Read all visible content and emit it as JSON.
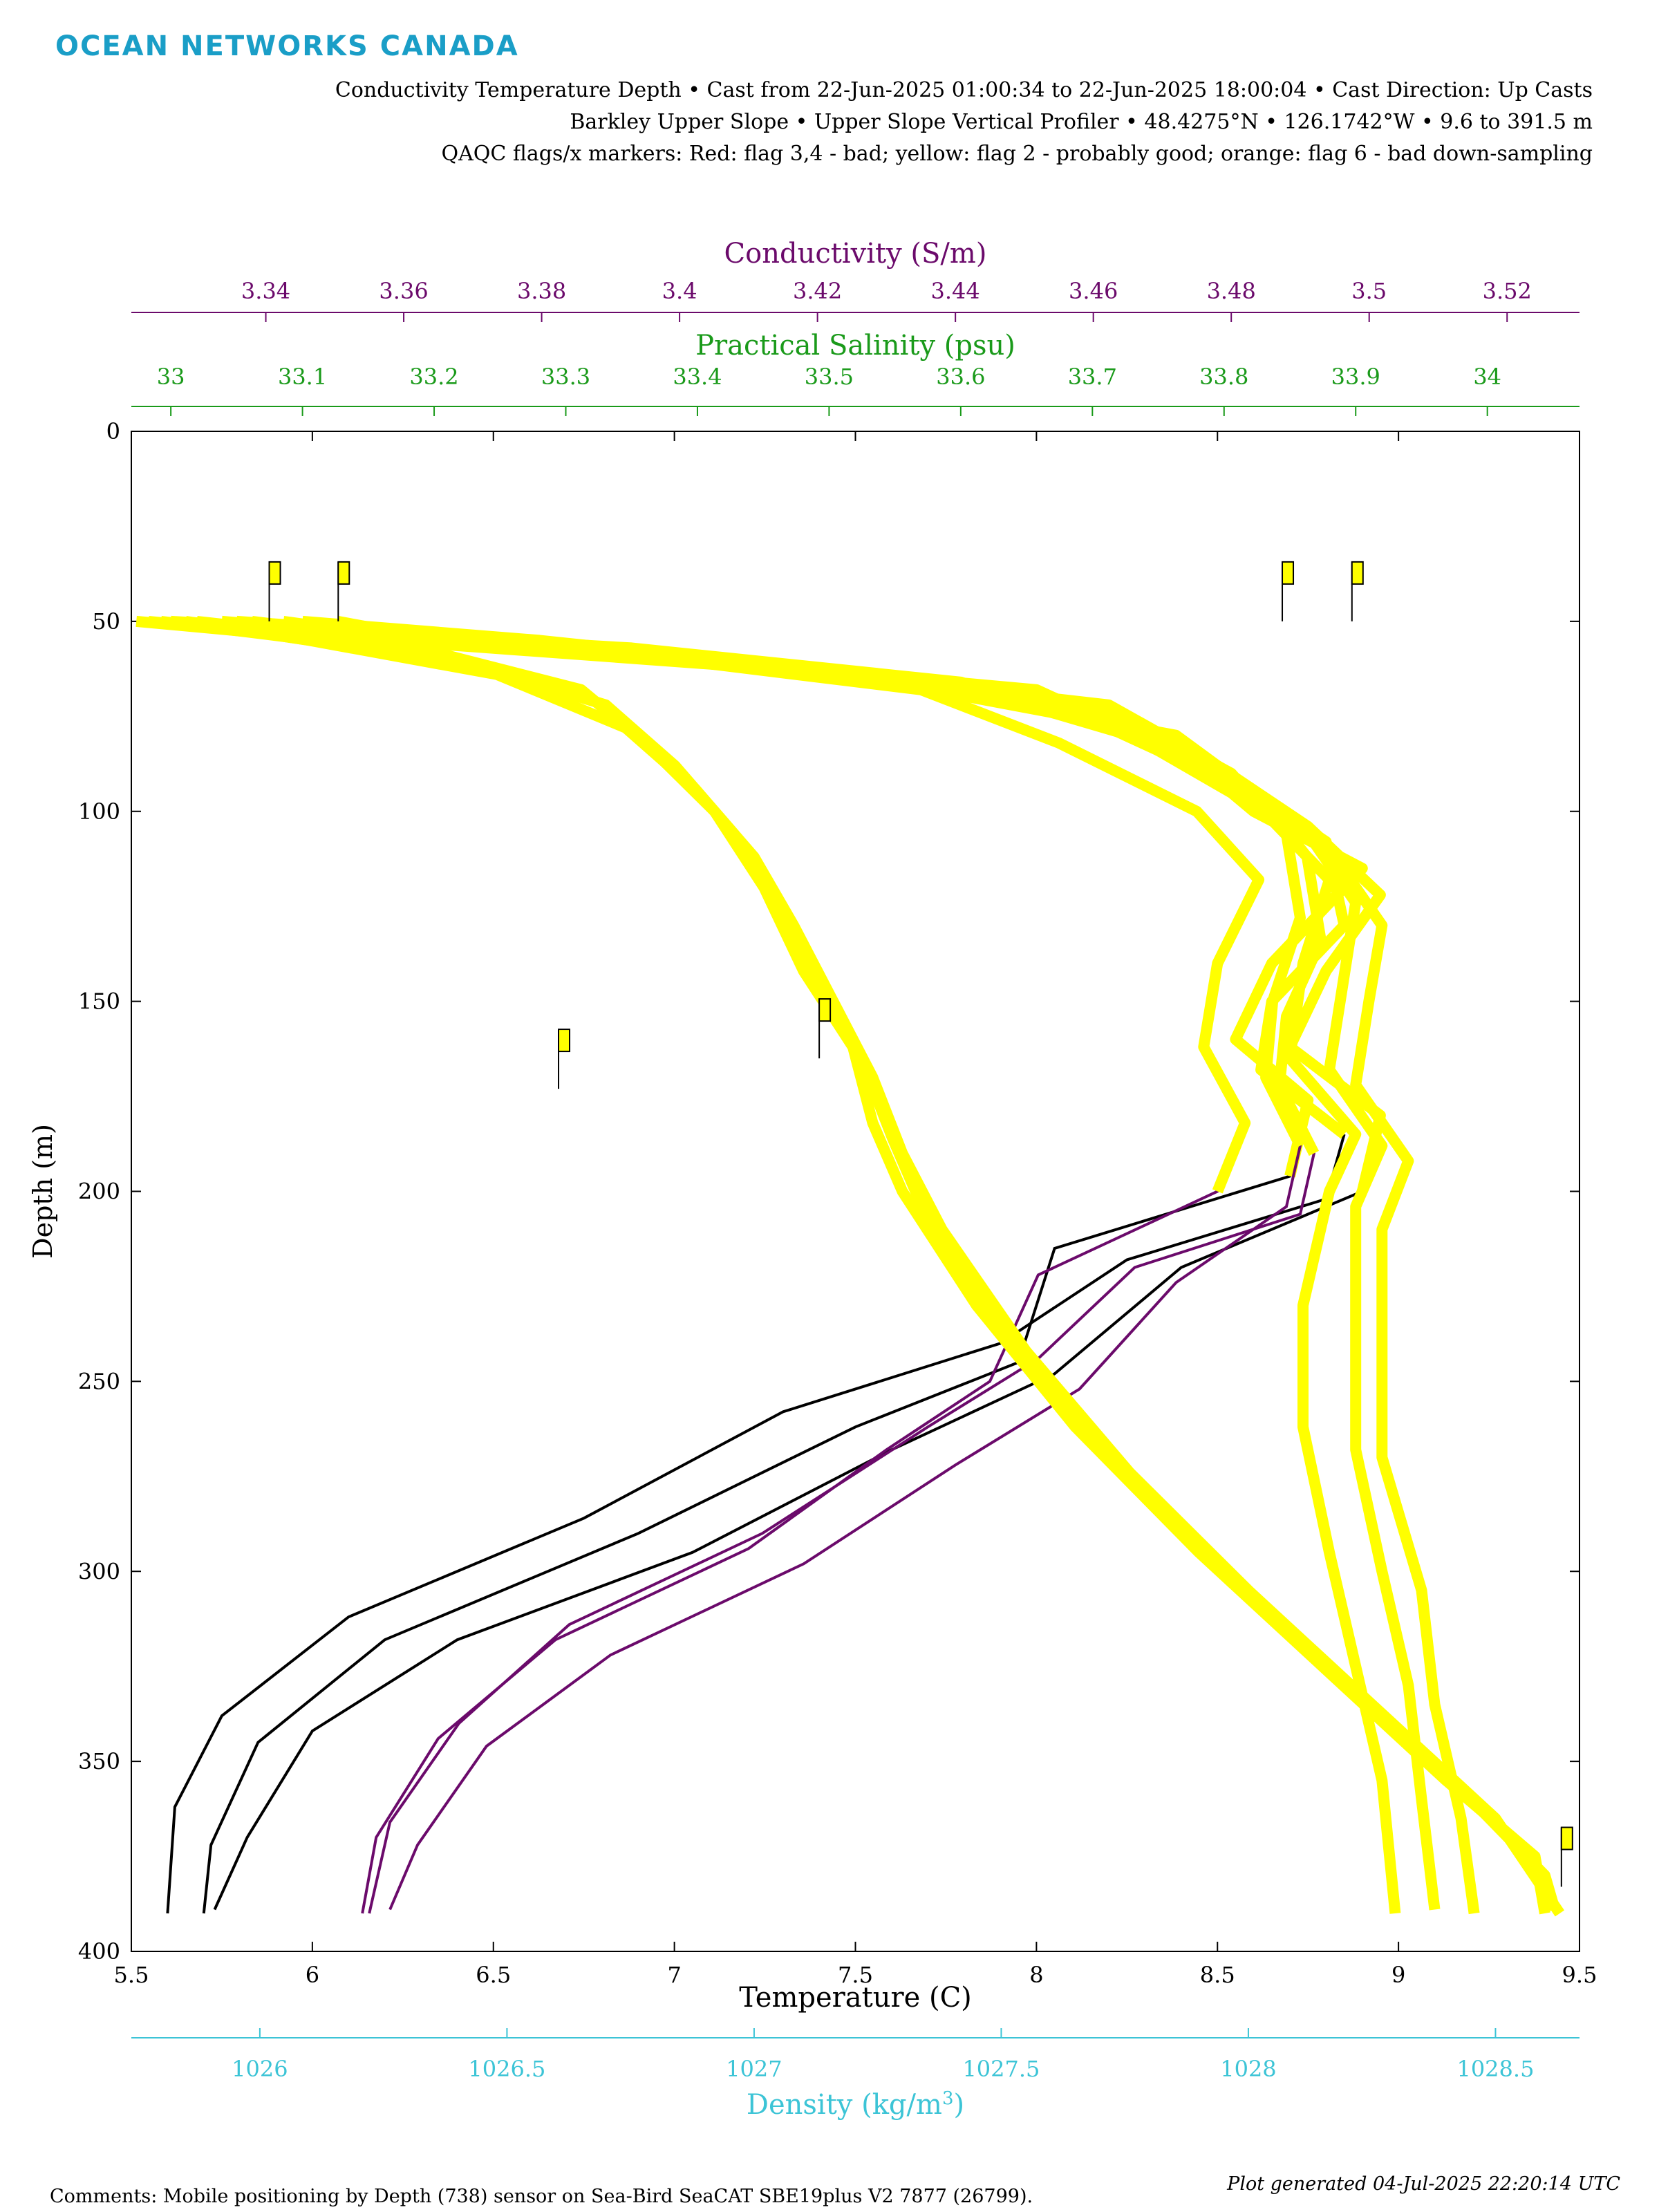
{
  "header": {
    "brand": "OCEAN NETWORKS CANADA",
    "line1": "Conductivity Temperature Depth • Cast from 22-Jun-2025 01:00:34 to 22-Jun-2025 18:00:04 • Cast Direction: Up Casts",
    "line2": "Barkley Upper Slope • Upper Slope Vertical Profiler • 48.4275°N • 126.1742°W • 9.6 to 391.5 m",
    "line3": "QAQC flags/x markers: Red: flag 3,4 - bad; yellow: flag 2 - probably good; orange: flag 6 - bad down-sampling"
  },
  "footer": {
    "comments": "Comments: Mobile positioning by Depth (738) sensor on Sea-Bird SeaCAT SBE19plus V2 7877 (26799).",
    "generated": "Plot generated 04-Jul-2025 22:20:14 UTC"
  },
  "colors": {
    "temperature": "#000000",
    "conductivity": "#6b0a6b",
    "salinity": "#1a9a1a",
    "density": "#3cc4d6",
    "flag2": "#ffff00"
  },
  "chart_data": {
    "type": "line",
    "y_axis": {
      "label": "Depth (m)",
      "range": [
        0,
        400
      ],
      "reversed": true,
      "ticks": [
        "0",
        "50",
        "100",
        "150",
        "200",
        "250",
        "300",
        "350",
        "400"
      ]
    },
    "x_axes": [
      {
        "key": "temperature",
        "label": "Temperature (C)",
        "position": "bottom",
        "range": [
          5.5,
          9.5
        ],
        "ticks": [
          "5.5",
          "6",
          "6.5",
          "7",
          "7.5",
          "8",
          "8.5",
          "9",
          "9.5"
        ]
      },
      {
        "key": "conductivity",
        "label": "Conductivity (S/m)",
        "position": "top",
        "range": [
          3.3205,
          3.5305
        ],
        "ticks": [
          "3.34",
          "3.36",
          "3.38",
          "3.4",
          "3.42",
          "3.44",
          "3.46",
          "3.48",
          "3.5",
          "3.52"
        ]
      },
      {
        "key": "salinity",
        "label": "Practical Salinity (psu)",
        "position": "top",
        "range": [
          32.97,
          34.07
        ],
        "ticks": [
          "33",
          "33.1",
          "33.2",
          "33.3",
          "33.4",
          "33.5",
          "33.6",
          "33.7",
          "33.8",
          "33.9",
          "34"
        ]
      },
      {
        "key": "density",
        "label": "Density (kg/m",
        "label_sup": "3",
        "label_end": ")",
        "position": "bottom",
        "range": [
          1025.74,
          1028.67
        ],
        "ticks": [
          "1026",
          "1026.5",
          "1027",
          "1027.5",
          "1028",
          "1028.5"
        ]
      }
    ],
    "series": [
      {
        "variable": "temperature",
        "casts": [
          [
            [
              5.75,
              50
            ],
            [
              6.0,
              52
            ],
            [
              6.9,
              58
            ],
            [
              7.9,
              70
            ],
            [
              8.4,
              84
            ],
            [
              8.6,
              100
            ],
            [
              8.9,
              115
            ],
            [
              8.65,
              140
            ],
            [
              8.55,
              160
            ],
            [
              8.75,
              176
            ],
            [
              8.7,
              196
            ],
            [
              8.05,
              215
            ],
            [
              7.95,
              245
            ],
            [
              7.5,
              262
            ],
            [
              6.9,
              290
            ],
            [
              6.2,
              318
            ],
            [
              5.85,
              345
            ],
            [
              5.72,
              372
            ],
            [
              5.7,
              390
            ]
          ],
          [
            [
              5.92,
              50
            ],
            [
              6.15,
              53
            ],
            [
              7.1,
              60
            ],
            [
              8.2,
              72
            ],
            [
              8.5,
              88
            ],
            [
              8.75,
              104
            ],
            [
              8.95,
              122
            ],
            [
              8.8,
              142
            ],
            [
              8.7,
              162
            ],
            [
              8.95,
              180
            ],
            [
              8.9,
              200
            ],
            [
              8.4,
              220
            ],
            [
              8.05,
              248
            ],
            [
              7.6,
              268
            ],
            [
              7.05,
              295
            ],
            [
              6.4,
              318
            ],
            [
              6.0,
              342
            ],
            [
              5.82,
              370
            ],
            [
              5.73,
              389
            ]
          ],
          [
            [
              6.07,
              50
            ],
            [
              6.3,
              54
            ],
            [
              7.3,
              62
            ],
            [
              8.0,
              68
            ],
            [
              8.55,
              92
            ],
            [
              8.8,
              108
            ],
            [
              8.85,
              130
            ],
            [
              8.65,
              150
            ],
            [
              8.62,
              168
            ],
            [
              8.85,
              185
            ],
            [
              8.8,
              202
            ],
            [
              8.25,
              218
            ],
            [
              7.9,
              240
            ],
            [
              7.3,
              258
            ],
            [
              6.75,
              286
            ],
            [
              6.1,
              312
            ],
            [
              5.75,
              338
            ],
            [
              5.62,
              362
            ],
            [
              5.6,
              390
            ]
          ]
        ]
      },
      {
        "variable": "conductivity",
        "casts": [
          [
            [
              3.323,
              50
            ],
            [
              3.34,
              53
            ],
            [
              3.39,
              58
            ],
            [
              3.435,
              68
            ],
            [
              3.455,
              82
            ],
            [
              3.475,
              100
            ],
            [
              3.484,
              118
            ],
            [
              3.478,
              140
            ],
            [
              3.476,
              162
            ],
            [
              3.482,
              182
            ],
            [
              3.478,
              200
            ],
            [
              3.452,
              222
            ],
            [
              3.445,
              250
            ],
            [
              3.43,
              268
            ],
            [
              3.41,
              294
            ],
            [
              3.382,
              318
            ],
            [
              3.365,
              344
            ],
            [
              3.356,
              370
            ],
            [
              3.354,
              390
            ]
          ],
          [
            [
              3.33,
              50
            ],
            [
              3.35,
              54
            ],
            [
              3.41,
              62
            ],
            [
              3.465,
              75
            ],
            [
              3.48,
              90
            ],
            [
              3.488,
              106
            ],
            [
              3.49,
              128
            ],
            [
              3.486,
              150
            ],
            [
              3.485,
              170
            ],
            [
              3.49,
              188
            ],
            [
              3.488,
              204
            ],
            [
              3.472,
              224
            ],
            [
              3.458,
              252
            ],
            [
              3.44,
              272
            ],
            [
              3.418,
              298
            ],
            [
              3.39,
              322
            ],
            [
              3.372,
              346
            ],
            [
              3.362,
              372
            ],
            [
              3.358,
              389
            ]
          ],
          [
            [
              3.338,
              50
            ],
            [
              3.36,
              55
            ],
            [
              3.425,
              64
            ],
            [
              3.472,
              80
            ],
            [
              3.484,
              96
            ],
            [
              3.491,
              112
            ],
            [
              3.493,
              134
            ],
            [
              3.488,
              154
            ],
            [
              3.487,
              172
            ],
            [
              3.492,
              190
            ],
            [
              3.49,
              206
            ],
            [
              3.466,
              220
            ],
            [
              3.452,
              244
            ],
            [
              3.436,
              262
            ],
            [
              3.412,
              290
            ],
            [
              3.384,
              314
            ],
            [
              3.368,
              340
            ],
            [
              3.358,
              366
            ],
            [
              3.355,
              390
            ]
          ]
        ]
      },
      {
        "variable": "salinity",
        "casts": [
          [
            [
              33.0,
              50
            ],
            [
              33.15,
              53
            ],
            [
              33.35,
              57
            ],
            [
              33.6,
              66
            ],
            [
              33.73,
              80
            ],
            [
              33.83,
              100
            ],
            [
              33.88,
              118
            ],
            [
              33.86,
              140
            ],
            [
              33.85,
              165
            ],
            [
              33.9,
              185
            ],
            [
              33.88,
              200
            ],
            [
              33.86,
              230
            ],
            [
              33.86,
              262
            ],
            [
              33.88,
              295
            ],
            [
              33.9,
              325
            ],
            [
              33.92,
              355
            ],
            [
              33.93,
              390
            ]
          ],
          [
            [
              33.05,
              50
            ],
            [
              33.22,
              54
            ],
            [
              33.42,
              60
            ],
            [
              33.66,
              70
            ],
            [
              33.78,
              86
            ],
            [
              33.86,
              104
            ],
            [
              33.9,
              124
            ],
            [
              33.89,
              146
            ],
            [
              33.88,
              168
            ],
            [
              33.92,
              188
            ],
            [
              33.9,
              204
            ],
            [
              33.9,
              236
            ],
            [
              33.9,
              268
            ],
            [
              33.92,
              300
            ],
            [
              33.94,
              330
            ],
            [
              33.95,
              360
            ],
            [
              33.96,
              389
            ]
          ],
          [
            [
              33.1,
              50
            ],
            [
              33.28,
              55
            ],
            [
              33.5,
              63
            ],
            [
              33.7,
              76
            ],
            [
              33.8,
              92
            ],
            [
              33.88,
              110
            ],
            [
              33.92,
              130
            ],
            [
              33.91,
              150
            ],
            [
              33.9,
              172
            ],
            [
              33.94,
              192
            ],
            [
              33.92,
              210
            ],
            [
              33.92,
              240
            ],
            [
              33.92,
              270
            ],
            [
              33.95,
              305
            ],
            [
              33.96,
              335
            ],
            [
              33.98,
              365
            ],
            [
              33.99,
              390
            ]
          ]
        ]
      },
      {
        "variable": "density",
        "casts": [
          [
            [
              1025.75,
              50
            ],
            [
              1026.0,
              53
            ],
            [
              1026.35,
              58
            ],
            [
              1026.65,
              68
            ],
            [
              1026.78,
              82
            ],
            [
              1026.92,
              100
            ],
            [
              1027.02,
              120
            ],
            [
              1027.1,
              142
            ],
            [
              1027.2,
              162
            ],
            [
              1027.24,
              182
            ],
            [
              1027.3,
              200
            ],
            [
              1027.45,
              230
            ],
            [
              1027.65,
              262
            ],
            [
              1027.9,
              295
            ],
            [
              1028.15,
              325
            ],
            [
              1028.4,
              355
            ],
            [
              1028.58,
              375
            ],
            [
              1028.6,
              390
            ]
          ],
          [
            [
              1025.8,
              50
            ],
            [
              1026.05,
              54
            ],
            [
              1026.42,
              61
            ],
            [
              1026.7,
              72
            ],
            [
              1026.84,
              88
            ],
            [
              1026.96,
              106
            ],
            [
              1027.06,
              126
            ],
            [
              1027.14,
              146
            ],
            [
              1027.22,
              166
            ],
            [
              1027.28,
              186
            ],
            [
              1027.34,
              204
            ],
            [
              1027.5,
              236
            ],
            [
              1027.7,
              268
            ],
            [
              1027.95,
              300
            ],
            [
              1028.2,
              330
            ],
            [
              1028.45,
              360
            ],
            [
              1028.6,
              380
            ],
            [
              1028.62,
              389
            ]
          ],
          [
            [
              1025.85,
              50
            ],
            [
              1026.1,
              55
            ],
            [
              1026.48,
              64
            ],
            [
              1026.74,
              78
            ],
            [
              1026.88,
              94
            ],
            [
              1027.0,
              112
            ],
            [
              1027.08,
              130
            ],
            [
              1027.16,
              150
            ],
            [
              1027.24,
              170
            ],
            [
              1027.3,
              190
            ],
            [
              1027.38,
              210
            ],
            [
              1027.55,
              242
            ],
            [
              1027.76,
              274
            ],
            [
              1028.0,
              305
            ],
            [
              1028.25,
              335
            ],
            [
              1028.5,
              365
            ],
            [
              1028.63,
              390
            ]
          ]
        ]
      }
    ],
    "flags": [
      {
        "axis": "conductivity",
        "value": 3.3405,
        "depth": 50
      },
      {
        "axis": "conductivity",
        "value": 3.3505,
        "depth": 50
      },
      {
        "axis": "conductivity",
        "value": 3.4874,
        "depth": 50
      },
      {
        "axis": "conductivity",
        "value": 3.4975,
        "depth": 50
      },
      {
        "axis": "temperature",
        "value": 6.68,
        "depth": 173
      },
      {
        "axis": "temperature",
        "value": 7.4,
        "depth": 165
      },
      {
        "axis": "temperature",
        "value": 9.45,
        "depth": 383
      }
    ]
  }
}
